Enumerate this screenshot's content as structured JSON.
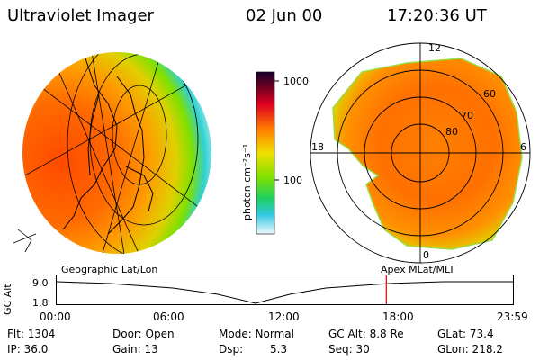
{
  "header": {
    "title": "Ultraviolet Imager",
    "date": "02 Jun 00",
    "time": "17:20:36 UT"
  },
  "colorbar": {
    "label": "photon cm⁻²s⁻¹",
    "ticks": [
      "1000",
      "100"
    ]
  },
  "left_map": {
    "caption": "Geographic Lat/Lon"
  },
  "right_map": {
    "caption": "Apex MLat/MLT",
    "mlt_labels": {
      "top": "12",
      "left": "18",
      "right": "6",
      "bottom": "0"
    },
    "lat_labels": [
      "80",
      "70",
      "60"
    ]
  },
  "altitude_plot": {
    "ylabel": "GC Alt",
    "yticks": [
      "9.0",
      "1.8"
    ],
    "xticks": [
      "00:00",
      "06:00",
      "12:00",
      "18:00",
      "23:59"
    ],
    "marker_time_hours": 17.34,
    "marker_color": "#dd0000"
  },
  "info": {
    "flt": "Flt: 1304",
    "ip": "IP: 36.0",
    "door": "Door: Open",
    "gain": "Gain: 13",
    "mode": "Mode: Normal",
    "dsp_label": "Dsp:",
    "dsp_value": "5.3",
    "gcalt": "GC Alt: 8.8 Re",
    "seq": "Seq: 30",
    "glat": "GLat: 73.4",
    "glon": "GLon: 218.2"
  }
}
